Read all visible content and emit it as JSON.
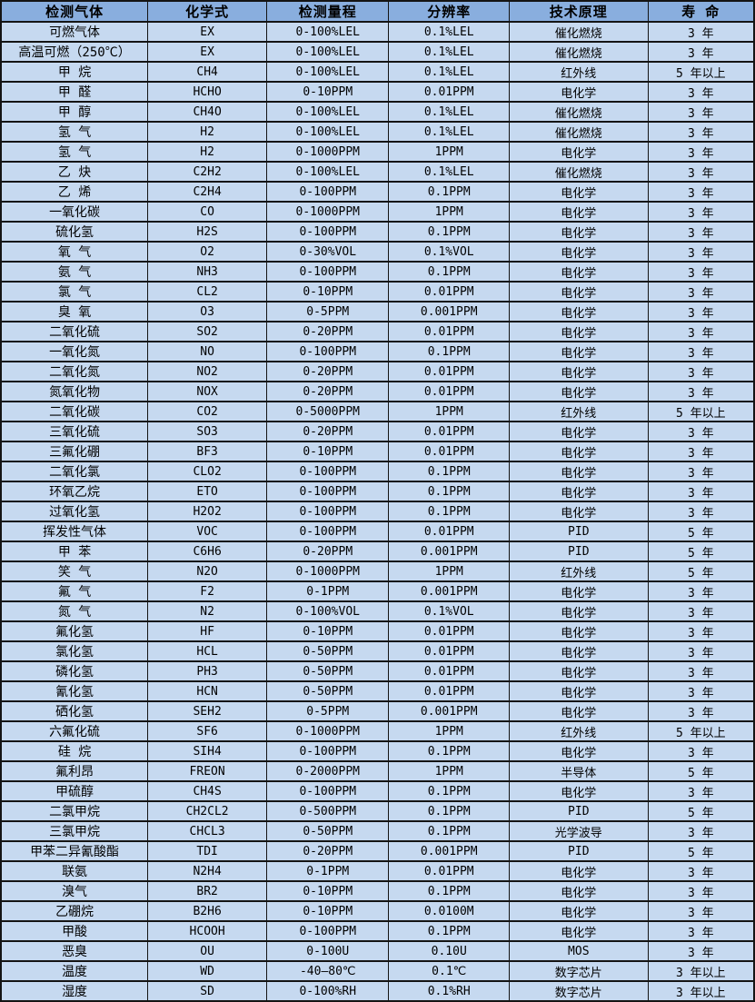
{
  "table": {
    "colors": {
      "header_bg": "#89aede",
      "row_bg": "#c6d9f0",
      "border": "#141414",
      "text": "#000000"
    },
    "headers": [
      "检测气体",
      "化学式",
      "检测量程",
      "分辨率",
      "技术原理",
      "寿 命"
    ],
    "rows": [
      [
        "可燃气体",
        "EX",
        "0-100%LEL",
        "0.1%LEL",
        "催化燃烧",
        "3 年"
      ],
      [
        "高温可燃（250℃）",
        "EX",
        "0-100%LEL",
        "0.1%LEL",
        "催化燃烧",
        "3 年"
      ],
      [
        "甲 烷",
        "CH4",
        "0-100%LEL",
        "0.1%LEL",
        "红外线",
        "5 年以上"
      ],
      [
        "甲 醛",
        "HCHO",
        "0-10PPM",
        "0.01PPM",
        "电化学",
        "3 年"
      ],
      [
        "甲 醇",
        "CH4O",
        "0-100%LEL",
        "0.1%LEL",
        "催化燃烧",
        "3 年"
      ],
      [
        "氢 气",
        "H2",
        "0-100%LEL",
        "0.1%LEL",
        "催化燃烧",
        "3 年"
      ],
      [
        "氢 气",
        "H2",
        "0-1000PPM",
        "1PPM",
        "电化学",
        "3 年"
      ],
      [
        "乙 炔",
        "C2H2",
        "0-100%LEL",
        "0.1%LEL",
        "催化燃烧",
        "3 年"
      ],
      [
        "乙 烯",
        "C2H4",
        "0-100PPM",
        "0.1PPM",
        "电化学",
        "3 年"
      ],
      [
        "一氧化碳",
        "CO",
        "0-1000PPM",
        "1PPM",
        "电化学",
        "3 年"
      ],
      [
        "硫化氢",
        "H2S",
        "0-100PPM",
        "0.1PPM",
        "电化学",
        "3 年"
      ],
      [
        "氧 气",
        "O2",
        "0-30%VOL",
        "0.1%VOL",
        "电化学",
        "3 年"
      ],
      [
        "氨 气",
        "NH3",
        "0-100PPM",
        "0.1PPM",
        "电化学",
        "3 年"
      ],
      [
        "氯 气",
        "CL2",
        "0-10PPM",
        "0.01PPM",
        "电化学",
        "3 年"
      ],
      [
        "臭 氧",
        "O3",
        "0-5PPM",
        "0.001PPM",
        "电化学",
        "3 年"
      ],
      [
        "二氧化硫",
        "SO2",
        "0-20PPM",
        "0.01PPM",
        "电化学",
        "3 年"
      ],
      [
        "一氧化氮",
        "NO",
        "0-100PPM",
        "0.1PPM",
        "电化学",
        "3 年"
      ],
      [
        "二氧化氮",
        "NO2",
        "0-20PPM",
        "0.01PPM",
        "电化学",
        "3 年"
      ],
      [
        "氮氧化物",
        "NOX",
        "0-20PPM",
        "0.01PPM",
        "电化学",
        "3 年"
      ],
      [
        "二氧化碳",
        "CO2",
        "0-5000PPM",
        "1PPM",
        "红外线",
        "5 年以上"
      ],
      [
        "三氧化硫",
        "SO3",
        "0-20PPM",
        "0.01PPM",
        "电化学",
        "3 年"
      ],
      [
        "三氟化硼",
        "BF3",
        "0-10PPM",
        "0.01PPM",
        "电化学",
        "3 年"
      ],
      [
        "二氧化氯",
        "CLO2",
        "0-100PPM",
        "0.1PPM",
        "电化学",
        "3 年"
      ],
      [
        "环氧乙烷",
        "ETO",
        "0-100PPM",
        "0.1PPM",
        "电化学",
        "3 年"
      ],
      [
        "过氧化氢",
        "H2O2",
        "0-100PPM",
        "0.1PPM",
        "电化学",
        "3 年"
      ],
      [
        "挥发性气体",
        "VOC",
        "0-100PPM",
        "0.01PPM",
        "PID",
        "5 年"
      ],
      [
        "甲 苯",
        "C6H6",
        "0-20PPM",
        "0.001PPM",
        "PID",
        "5 年"
      ],
      [
        "笑 气",
        "N2O",
        "0-1000PPM",
        "1PPM",
        "红外线",
        "5 年"
      ],
      [
        "氟 气",
        "F2",
        "0-1PPM",
        "0.001PPM",
        "电化学",
        "3 年"
      ],
      [
        "氮 气",
        "N2",
        "0-100%VOL",
        "0.1%VOL",
        "电化学",
        "3 年"
      ],
      [
        "氟化氢",
        "HF",
        "0-10PPM",
        "0.01PPM",
        "电化学",
        "3 年"
      ],
      [
        "氯化氢",
        "HCL",
        "0-50PPM",
        "0.01PPM",
        "电化学",
        "3 年"
      ],
      [
        "磷化氢",
        "PH3",
        "0-50PPM",
        "0.01PPM",
        "电化学",
        "3 年"
      ],
      [
        "氰化氢",
        "HCN",
        "0-50PPM",
        "0.01PPM",
        "电化学",
        "3 年"
      ],
      [
        "硒化氢",
        "SEH2",
        "0-5PPM",
        "0.001PPM",
        "电化学",
        "3 年"
      ],
      [
        "六氟化硫",
        "SF6",
        "0-1000PPM",
        "1PPM",
        "红外线",
        "5 年以上"
      ],
      [
        "硅 烷",
        "SIH4",
        "0-100PPM",
        "0.1PPM",
        "电化学",
        "3 年"
      ],
      [
        "氟利昂",
        "FREON",
        "0-2000PPM",
        "1PPM",
        "半导体",
        "5 年"
      ],
      [
        "甲硫醇",
        "CH4S",
        "0-100PPM",
        "0.1PPM",
        "电化学",
        "3 年"
      ],
      [
        "二氯甲烷",
        "CH2CL2",
        "0-500PPM",
        "0.1PPM",
        "PID",
        "5 年"
      ],
      [
        "三氯甲烷",
        "CHCL3",
        "0-50PPM",
        "0.1PPM",
        "光学波导",
        "3 年"
      ],
      [
        "甲苯二异氰酸酯",
        "TDI",
        "0-20PPM",
        "0.001PPM",
        "PID",
        "5 年"
      ],
      [
        "联氨",
        "N2H4",
        "0-1PPM",
        "0.01PPM",
        "电化学",
        "3 年"
      ],
      [
        "溴气",
        "BR2",
        "0-10PPM",
        "0.1PPM",
        "电化学",
        "3 年"
      ],
      [
        "乙硼烷",
        "B2H6",
        "0-10PPM",
        "0.0100M",
        "电化学",
        "3 年"
      ],
      [
        "甲酸",
        "HCOOH",
        "0-100PPM",
        "0.1PPM",
        "电化学",
        "3 年"
      ],
      [
        "恶臭",
        "OU",
        "0-100U",
        "0.10U",
        "MOS",
        "3 年"
      ],
      [
        "温度",
        "WD",
        "-40—80℃",
        "0.1℃",
        "数字芯片",
        "3 年以上"
      ],
      [
        "湿度",
        "SD",
        "0-100%RH",
        "0.1%RH",
        "数字芯片",
        "3 年以上"
      ]
    ]
  }
}
